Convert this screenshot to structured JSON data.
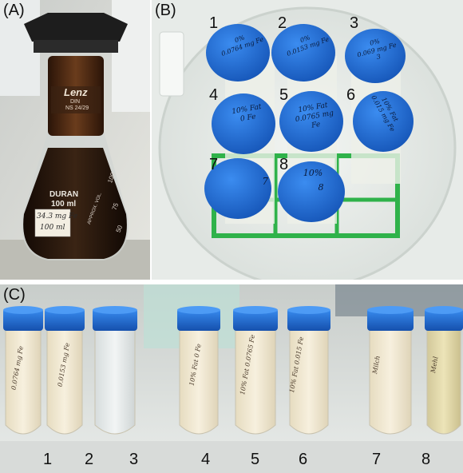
{
  "panels": {
    "a": {
      "letter": "(A)"
    },
    "b": {
      "letter": "(B)"
    },
    "c": {
      "letter": "(C)"
    }
  },
  "flask": {
    "brand": "Lenz",
    "spec1": "DIN",
    "spec2": "NS 24/29",
    "glass": "DURAN",
    "volume": "100 ml",
    "scale_top": "100",
    "scale_mid": "75",
    "scale_low": "50",
    "approx": "APPROX. VOL.",
    "label_line1": "34.3 mg Fe",
    "label_line2": "100 ml"
  },
  "rack": {
    "numbers": [
      "1",
      "2",
      "3",
      "4",
      "5",
      "6",
      "7",
      "8"
    ],
    "lids": [
      [
        "0%",
        "0.0764 mg Fe"
      ],
      [
        "0%",
        "0.0153 mg Fe"
      ],
      [
        "0%",
        "0.069 mg Fe",
        "3"
      ],
      [
        "10% Fat",
        "0 Fe"
      ],
      [
        "10% Fat",
        "0.0765 mg Fe"
      ],
      [
        "10% Fat",
        "0.015 mg Fe"
      ],
      [
        "",
        "7"
      ],
      [
        "10%",
        "8"
      ]
    ]
  },
  "tubes": {
    "numbers": [
      "1",
      "2",
      "3",
      "4",
      "5",
      "6",
      "7",
      "8"
    ],
    "labels": [
      "0.0764 mg Fe",
      "0.0153 mg Fe",
      "",
      "10% Fat 0 Fe",
      "10% Fat 0.0765 Fe",
      "10% Fat 0.015 Fe",
      "Milch",
      "Mehl"
    ]
  },
  "colors": {
    "lid_blue": "#1f6fd6",
    "rack_green": "#2fb24a",
    "dark_liquid": "#2a1a0e",
    "milk": "#f2ead2"
  }
}
